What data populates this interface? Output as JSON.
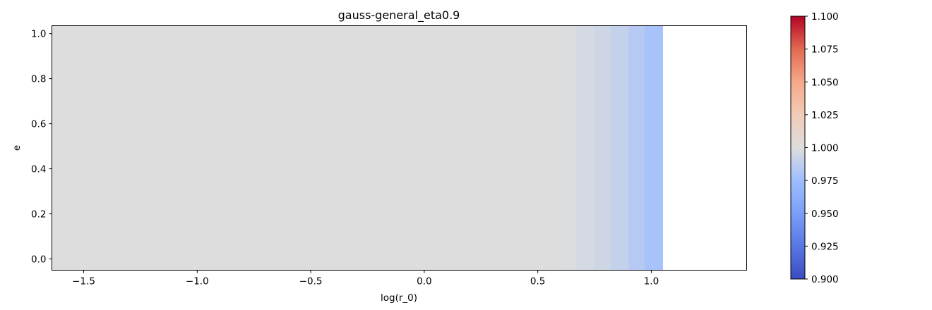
{
  "chart_data": {
    "type": "heatmap",
    "title": "gauss-general_eta0.9",
    "xlabel": "log(r_0)",
    "ylabel": "e",
    "xlim": [
      -1.64,
      1.42
    ],
    "ylim": [
      -0.05,
      1.035
    ],
    "x_ticks": [
      {
        "value": -1.5,
        "label": "−1.5"
      },
      {
        "value": -1.0,
        "label": "−1.0"
      },
      {
        "value": -0.5,
        "label": "−0.5"
      },
      {
        "value": 0.0,
        "label": "0.0"
      },
      {
        "value": 0.5,
        "label": "0.5"
      },
      {
        "value": 1.0,
        "label": "1.0"
      }
    ],
    "y_ticks": [
      {
        "value": 0.0,
        "label": "0.0"
      },
      {
        "value": 0.2,
        "label": "0.2"
      },
      {
        "value": 0.4,
        "label": "0.4"
      },
      {
        "value": 0.6,
        "label": "0.6"
      },
      {
        "value": 0.8,
        "label": "0.8"
      },
      {
        "value": 1.0,
        "label": "1.0"
      }
    ],
    "colormap": "coolwarm",
    "colorbar": {
      "vmin": 0.9,
      "vmax": 1.1,
      "ticks": [
        {
          "value": 0.9,
          "label": "0.900"
        },
        {
          "value": 0.925,
          "label": "0.925"
        },
        {
          "value": 0.95,
          "label": "0.950"
        },
        {
          "value": 0.975,
          "label": "0.975"
        },
        {
          "value": 1.0,
          "label": "1.000"
        },
        {
          "value": 1.025,
          "label": "1.025"
        },
        {
          "value": 1.05,
          "label": "1.050"
        },
        {
          "value": 1.075,
          "label": "1.075"
        },
        {
          "value": 1.1,
          "label": "1.100"
        }
      ]
    },
    "cells": [
      {
        "x0": -1.64,
        "x1": 0.6,
        "y0": -0.05,
        "y1": 1.035,
        "value": 1.0
      },
      {
        "x0": 0.6,
        "x1": 0.67,
        "y0": -0.05,
        "y1": 1.035,
        "value": 0.999
      },
      {
        "x0": 0.67,
        "x1": 0.75,
        "y0": -0.05,
        "y1": 1.035,
        "value": 0.997
      },
      {
        "x0": 0.75,
        "x1": 0.82,
        "y0": -0.05,
        "y1": 1.035,
        "value": 0.994
      },
      {
        "x0": 0.82,
        "x1": 0.9,
        "y0": -0.05,
        "y1": 1.035,
        "value": 0.99
      },
      {
        "x0": 0.9,
        "x1": 0.97,
        "y0": -0.05,
        "y1": 1.035,
        "value": 0.984
      },
      {
        "x0": 0.97,
        "x1": 1.05,
        "y0": -0.05,
        "y1": 1.035,
        "value": 0.979
      }
    ],
    "grid": false
  }
}
